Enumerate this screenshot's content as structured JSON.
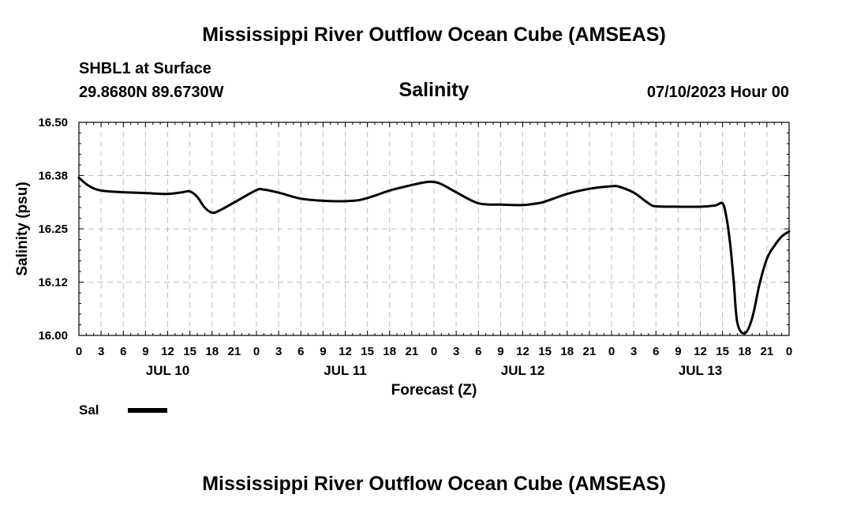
{
  "header": {
    "main_title": "Mississippi River Outflow Ocean Cube (AMSEAS)",
    "station": "SHBL1 at Surface",
    "coordinates": "29.8680N  89.6730W",
    "chart_title": "Salinity",
    "timestamp": "07/10/2023 Hour 00"
  },
  "footer": {
    "title": "Mississippi River Outflow Ocean Cube (AMSEAS)"
  },
  "legend": {
    "label": "Sal",
    "color": "#000000"
  },
  "chart_data": {
    "type": "line",
    "title": "Salinity",
    "xlabel": "Forecast (Z)",
    "ylabel": "Salinity (psu)",
    "ylim": [
      16.0,
      16.5
    ],
    "xlim": [
      0,
      96
    ],
    "y_ticks": [
      "16.00",
      "16.12",
      "16.25",
      "16.38",
      "16.50"
    ],
    "x_ticks": [
      "0",
      "3",
      "6",
      "9",
      "12",
      "15",
      "18",
      "21",
      "0",
      "3",
      "6",
      "9",
      "12",
      "15",
      "18",
      "21",
      "0",
      "3",
      "6",
      "9",
      "12",
      "15",
      "18",
      "21",
      "0",
      "3",
      "6",
      "9",
      "12",
      "15",
      "18",
      "21",
      "0"
    ],
    "day_labels": [
      {
        "label": "JUL 10",
        "hour": 12
      },
      {
        "label": "JUL 11",
        "hour": 36
      },
      {
        "label": "JUL 12",
        "hour": 60
      },
      {
        "label": "JUL 13",
        "hour": 84
      }
    ],
    "grid": true,
    "series": [
      {
        "name": "Sal",
        "x": [
          0,
          1,
          2,
          3,
          4,
          6,
          9,
          12,
          14,
          15,
          16,
          17,
          18,
          19,
          21,
          24,
          25,
          27,
          30,
          33,
          36,
          38,
          40,
          42,
          45,
          47,
          48,
          49,
          51,
          54,
          57,
          60,
          62,
          63,
          66,
          69,
          72,
          73,
          75,
          77,
          78,
          81,
          84,
          86,
          87,
          87.5,
          88,
          88.5,
          89,
          90,
          91,
          92,
          93,
          94,
          95,
          96
        ],
        "y": [
          16.37,
          16.355,
          16.345,
          16.34,
          16.338,
          16.336,
          16.334,
          16.332,
          16.336,
          16.338,
          16.325,
          16.3,
          16.288,
          16.293,
          16.312,
          16.341,
          16.342,
          16.335,
          16.321,
          16.316,
          16.315,
          16.318,
          16.328,
          16.34,
          16.353,
          16.36,
          16.36,
          16.355,
          16.336,
          16.31,
          16.307,
          16.306,
          16.31,
          16.314,
          16.332,
          16.344,
          16.35,
          16.349,
          16.335,
          16.31,
          16.303,
          16.302,
          16.302,
          16.305,
          16.31,
          16.28,
          16.22,
          16.13,
          16.03,
          16.005,
          16.04,
          16.12,
          16.18,
          16.21,
          16.232,
          16.244
        ]
      }
    ]
  }
}
